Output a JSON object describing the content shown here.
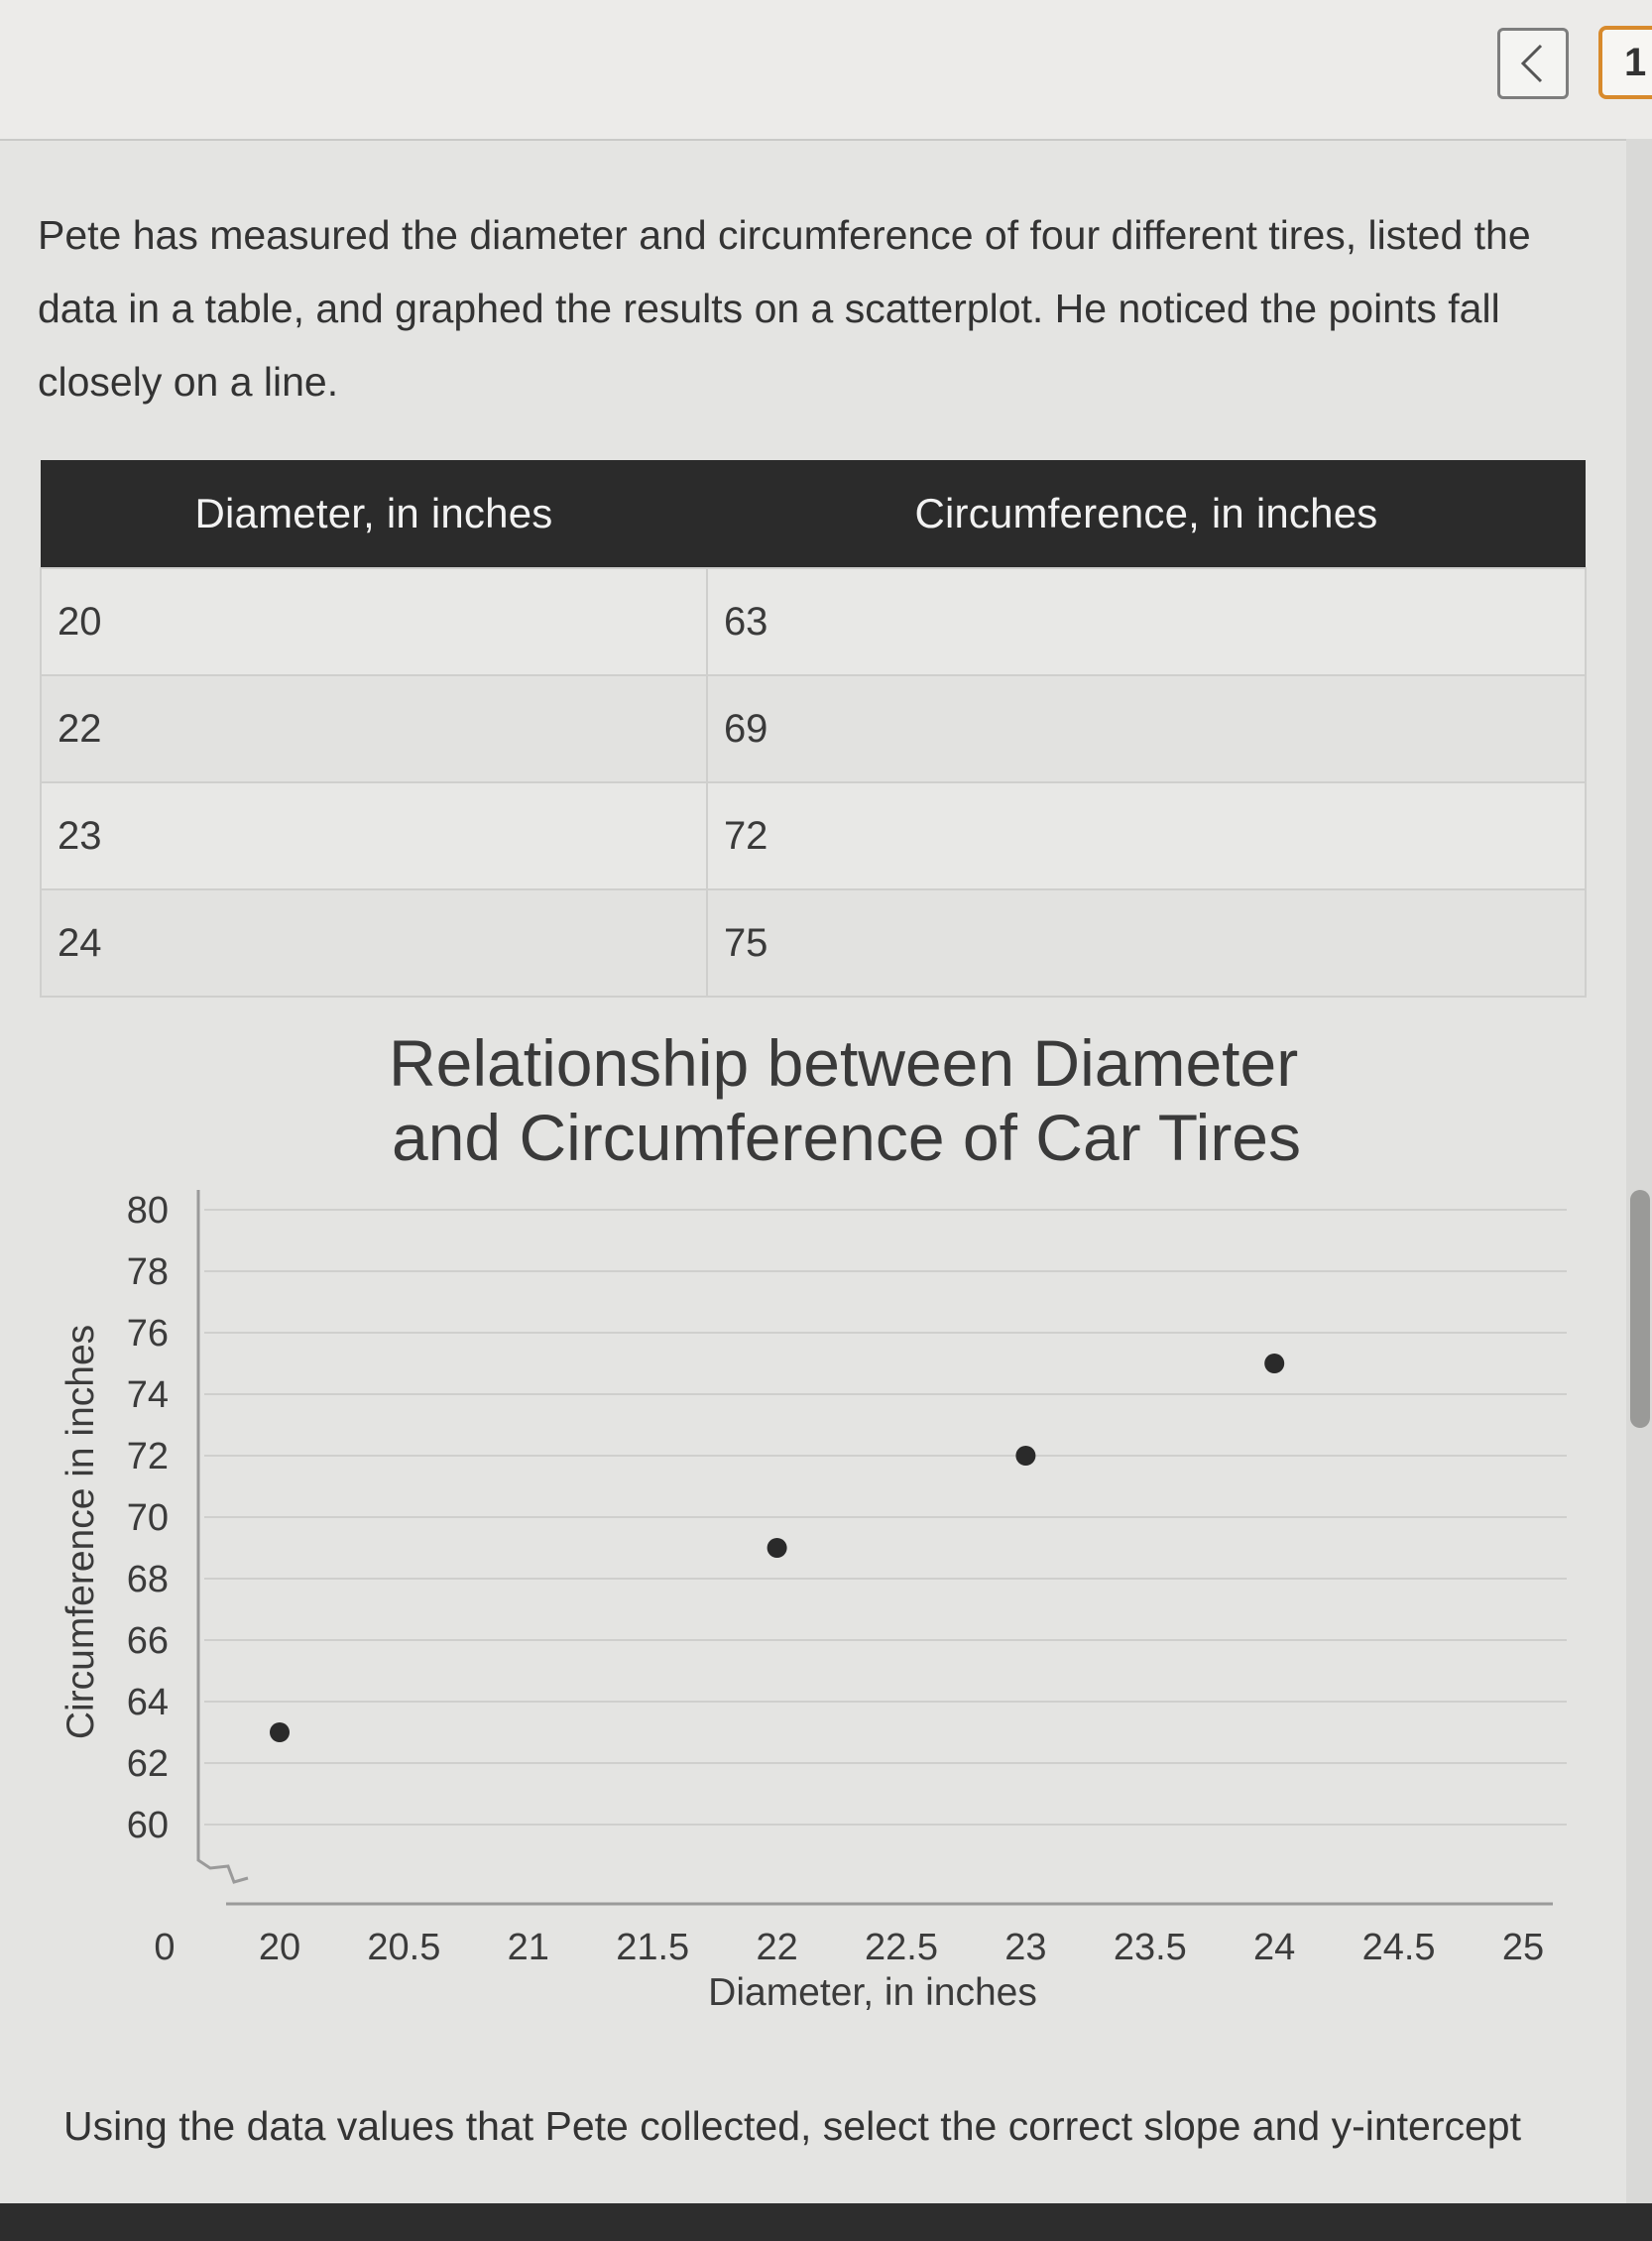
{
  "header": {
    "back_icon": "chevron-left-icon",
    "page_chip": "1"
  },
  "question": {
    "text": "Pete has measured the diameter and circumference of four different tires, listed the data in a table, and graphed the results on a scatterplot. He noticed the points fall closely on a line."
  },
  "table": {
    "columns": [
      "Diameter, in inches",
      "Circumference, in inches"
    ],
    "rows": [
      [
        "20",
        "63"
      ],
      [
        "22",
        "69"
      ],
      [
        "23",
        "72"
      ],
      [
        "24",
        "75"
      ]
    ]
  },
  "chart_data": {
    "type": "scatter",
    "title": "Relationship between Diameter and Circumference of Car Tires",
    "title_lines": [
      "Relationship between Diameter",
      "and Circumference of Car Tires"
    ],
    "xlabel": "Diameter, in inches",
    "ylabel": "Circumference in inches",
    "x_ticks": [
      "0",
      "20",
      "20.5",
      "21",
      "21.5",
      "22",
      "22.5",
      "23",
      "23.5",
      "24",
      "24.5",
      "25"
    ],
    "y_ticks": [
      "80",
      "78",
      "76",
      "74",
      "72",
      "70",
      "68",
      "66",
      "64",
      "62",
      "60"
    ],
    "xlim": [
      19.5,
      25
    ],
    "ylim": [
      58,
      80
    ],
    "axis_break": true,
    "grid": true,
    "points": [
      {
        "x": 20,
        "y": 63
      },
      {
        "x": 22,
        "y": 69
      },
      {
        "x": 23,
        "y": 72
      },
      {
        "x": 24,
        "y": 75
      }
    ],
    "point_color": "#2a2a2a"
  },
  "footer": {
    "text": "Using the data values that Pete collected, select the correct slope and y-intercept"
  }
}
